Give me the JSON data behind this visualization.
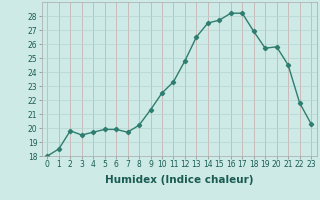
{
  "title": "",
  "xlabel": "Humidex (Indice chaleur)",
  "x": [
    0,
    1,
    2,
    3,
    4,
    5,
    6,
    7,
    8,
    9,
    10,
    11,
    12,
    13,
    14,
    15,
    16,
    17,
    18,
    19,
    20,
    21,
    22,
    23
  ],
  "y": [
    18.0,
    18.5,
    19.8,
    19.5,
    19.7,
    19.9,
    19.9,
    19.7,
    20.2,
    21.3,
    22.5,
    23.3,
    24.8,
    26.5,
    27.5,
    27.7,
    28.2,
    28.2,
    26.9,
    25.7,
    25.8,
    24.5,
    21.8,
    20.3
  ],
  "line_color": "#2e7d6e",
  "marker": "D",
  "marker_size": 2.2,
  "bg_color": "#ceeae7",
  "grid_color_x": "#c8a8a8",
  "grid_color_y": "#b8d4d0",
  "ylim": [
    18,
    29
  ],
  "yticks": [
    18,
    19,
    20,
    21,
    22,
    23,
    24,
    25,
    26,
    27,
    28
  ],
  "xticks": [
    0,
    1,
    2,
    3,
    4,
    5,
    6,
    7,
    8,
    9,
    10,
    11,
    12,
    13,
    14,
    15,
    16,
    17,
    18,
    19,
    20,
    21,
    22,
    23
  ],
  "tick_fontsize": 5.5,
  "xlabel_fontsize": 7.5,
  "line_width": 1.0
}
